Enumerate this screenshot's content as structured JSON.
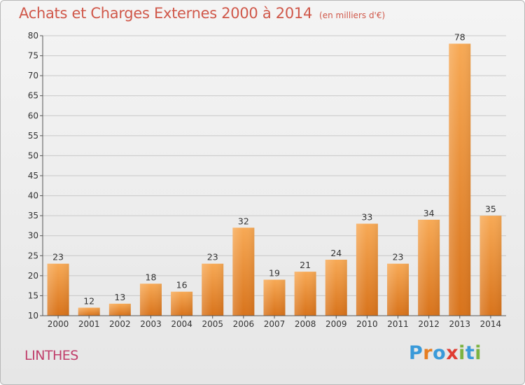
{
  "title": "Achats et Charges Externes 2000 à 2014",
  "unit": "(en milliers d'€)",
  "commune": "LINTHES",
  "logo": {
    "letters": [
      "P",
      "r",
      "o",
      "x",
      "i",
      "t",
      "i"
    ],
    "colors": [
      "#3a9ad9",
      "#e67e22",
      "#3a9ad9",
      "#e03c31",
      "#7cb342",
      "#3a9ad9",
      "#7cb342"
    ]
  },
  "colors": {
    "bar_light": "#f7a955",
    "bar_dark": "#d8731b",
    "grid": "#c8c8c8",
    "axis": "#555555"
  },
  "chart_data": {
    "type": "bar",
    "title": "Achats et Charges Externes 2000 à 2014",
    "categories": [
      "2000",
      "2001",
      "2002",
      "2003",
      "2004",
      "2005",
      "2006",
      "2007",
      "2008",
      "2009",
      "2010",
      "2011",
      "2012",
      "2013",
      "2014"
    ],
    "values": [
      23,
      12,
      13,
      18,
      16,
      23,
      32,
      19,
      21,
      24,
      33,
      23,
      34,
      78,
      35
    ],
    "ylim": [
      10,
      80
    ],
    "yticks": [
      10,
      15,
      20,
      25,
      30,
      35,
      40,
      45,
      50,
      55,
      60,
      65,
      70,
      75,
      80
    ],
    "grid": true,
    "xlabel": "",
    "ylabel": ""
  }
}
